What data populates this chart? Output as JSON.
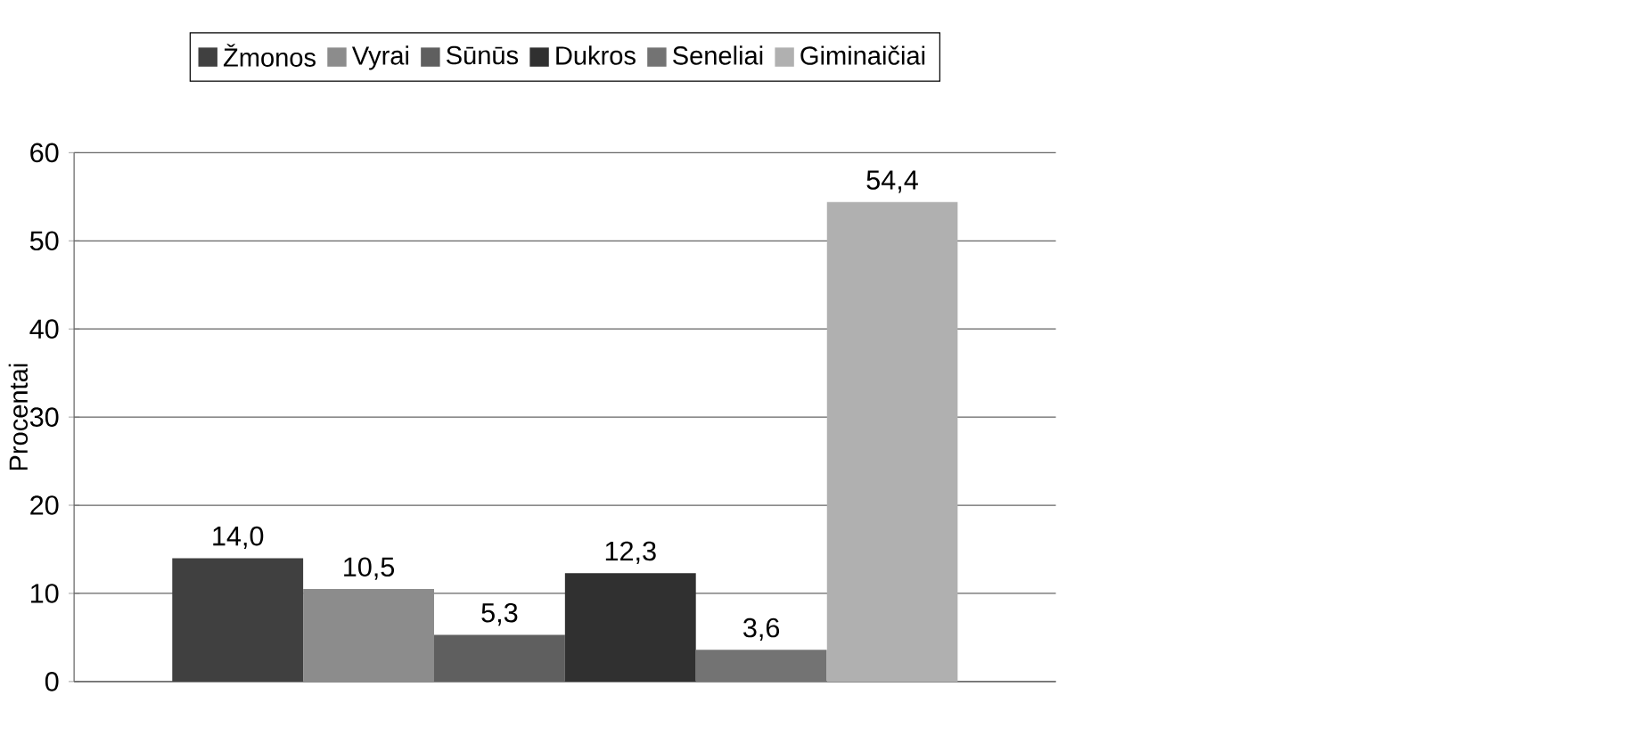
{
  "chart_data": {
    "type": "bar",
    "ylabel": "Procentai",
    "categories": [
      null
    ],
    "series": [
      {
        "name": "Žmonos",
        "color": "#404040",
        "values": [
          14.0
        ],
        "value_labels": [
          "14,0"
        ]
      },
      {
        "name": "Vyrai",
        "color": "#8c8c8c",
        "values": [
          10.5
        ],
        "value_labels": [
          "10,5"
        ]
      },
      {
        "name": "Sūnūs",
        "color": "#5f5f5f",
        "values": [
          5.3
        ],
        "value_labels": [
          "5,3"
        ]
      },
      {
        "name": "Dukros",
        "color": "#303030",
        "values": [
          12.3
        ],
        "value_labels": [
          "12,3"
        ]
      },
      {
        "name": "Seneliai",
        "color": "#737373",
        "values": [
          3.6
        ],
        "value_labels": [
          "3,6"
        ]
      },
      {
        "name": "Giminaičiai",
        "color": "#b0b0b0",
        "values": [
          54.4
        ],
        "value_labels": [
          "54,4"
        ]
      }
    ],
    "ylim": [
      0,
      60
    ],
    "yticks": [
      0,
      10,
      20,
      30,
      40,
      50,
      60
    ],
    "grid": "y",
    "legend": "top",
    "tick_labels": "y"
  }
}
